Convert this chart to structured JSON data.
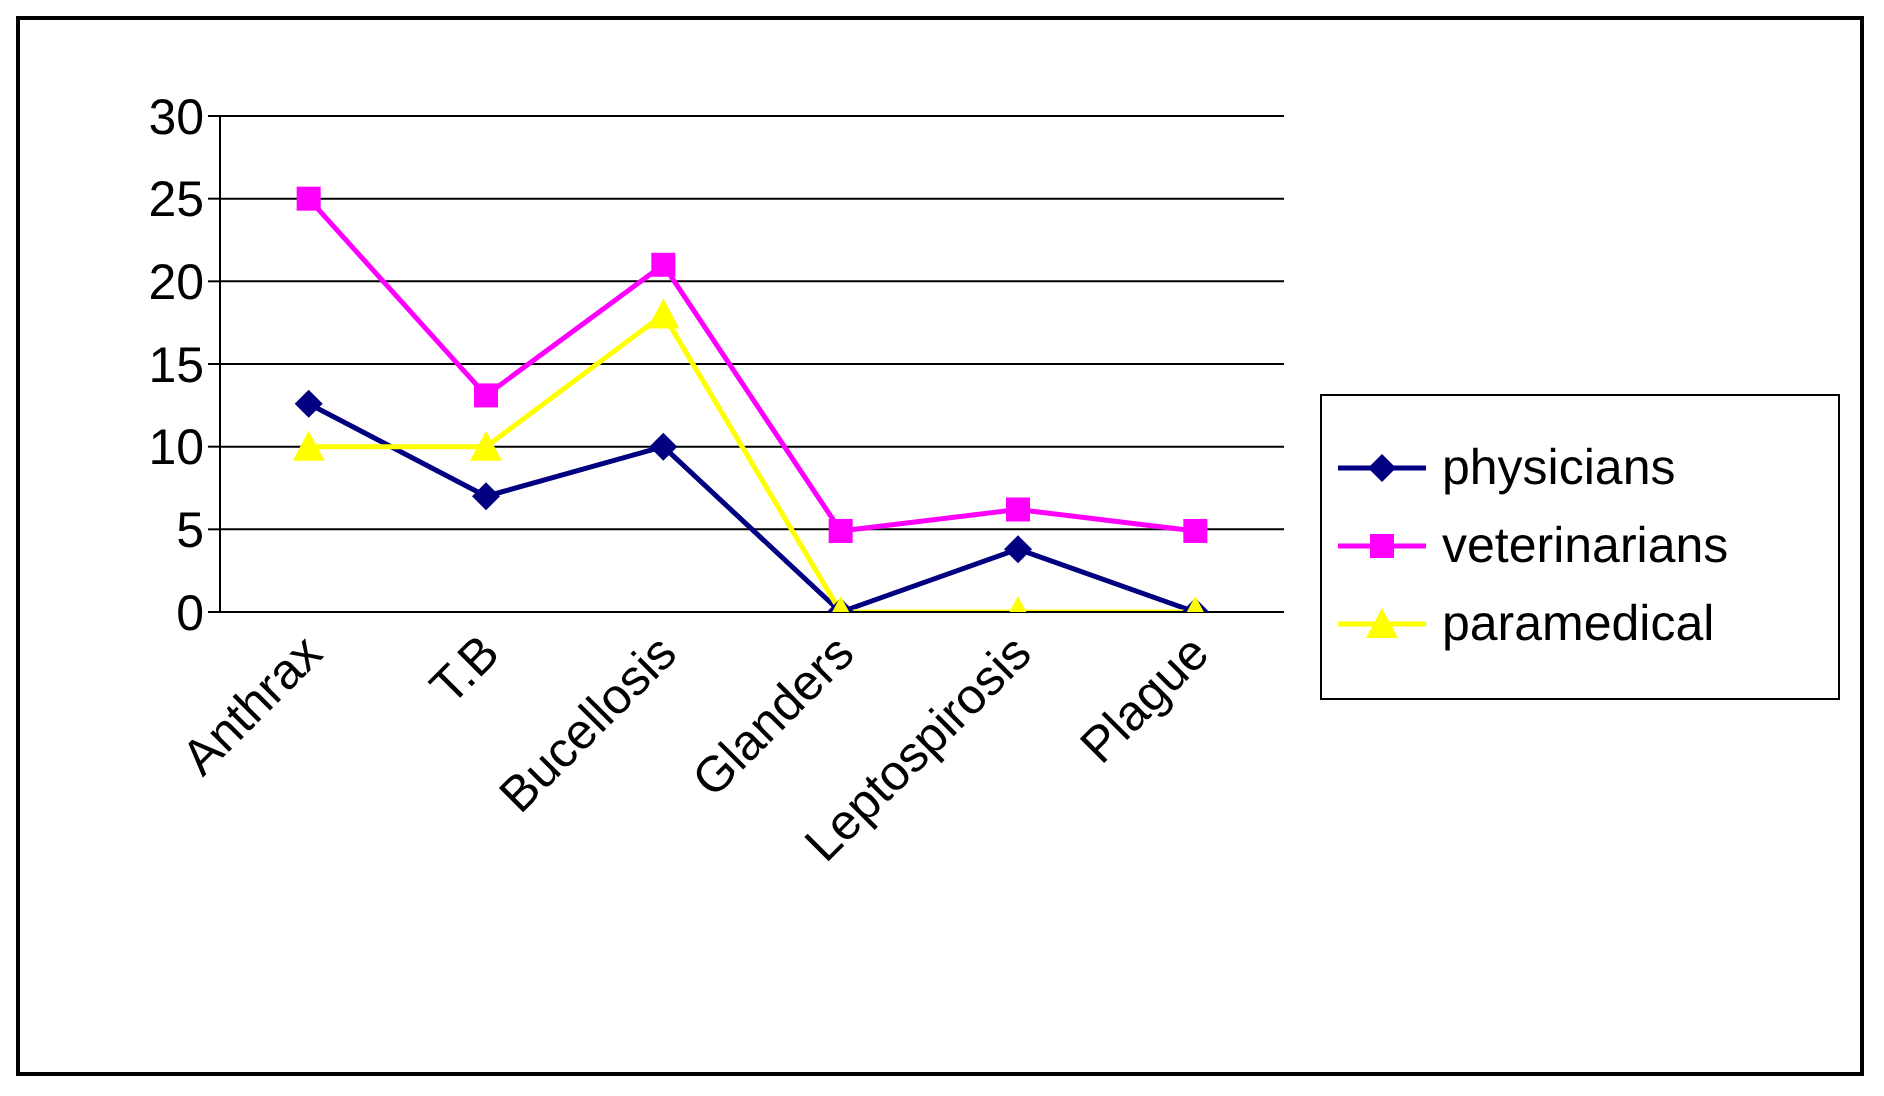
{
  "chart_data": {
    "type": "line",
    "categories": [
      "Anthrax",
      "T.B",
      "Bucellosis",
      "Glanders",
      "Leptospirosis",
      "Plague"
    ],
    "series": [
      {
        "name": "physicians",
        "color": "#000080",
        "marker": "diamond",
        "values": [
          12.6,
          7,
          10,
          0,
          3.8,
          0
        ]
      },
      {
        "name": "veterinarians",
        "color": "#ff00ff",
        "marker": "square",
        "values": [
          25,
          13.1,
          21,
          4.9,
          6.2,
          4.9
        ]
      },
      {
        "name": "paramedical",
        "color": "#ffff00",
        "marker": "triangle",
        "values": [
          10,
          10,
          18,
          0,
          0,
          0
        ]
      }
    ],
    "ylim": [
      0,
      30
    ],
    "yticks": [
      0,
      5,
      10,
      15,
      20,
      25,
      30
    ],
    "grid": "y",
    "legend": "right"
  }
}
